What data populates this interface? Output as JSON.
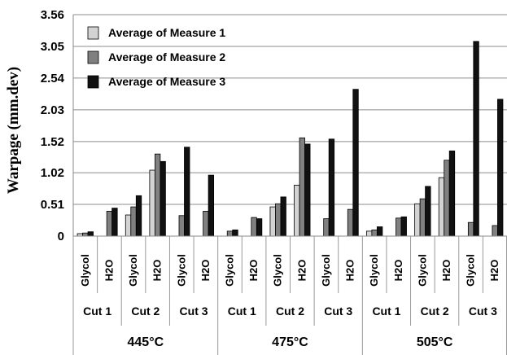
{
  "chart_data": {
    "type": "bar",
    "ylabel": "Warpage (mm.dev)",
    "yticks": [
      "3.56",
      "3.05",
      "2.54",
      "2.03",
      "1.52",
      "1.02",
      "0.51",
      "0"
    ],
    "ylim": [
      0,
      3.56
    ],
    "grid": true,
    "legend_position": "top-left",
    "groups": [
      {
        "temperature": "445°C",
        "cuts": [
          {
            "cut": "Cut 1",
            "fluids": [
              "Glycol",
              "H2O"
            ]
          },
          {
            "cut": "Cut 2",
            "fluids": [
              "Glycol",
              "H2O"
            ]
          },
          {
            "cut": "Cut 3",
            "fluids": [
              "Glycol",
              "H2O"
            ]
          }
        ]
      },
      {
        "temperature": "475°C",
        "cuts": [
          {
            "cut": "Cut 1",
            "fluids": [
              "Glycol",
              "H2O"
            ]
          },
          {
            "cut": "Cut 2",
            "fluids": [
              "Glycol",
              "H2O"
            ]
          },
          {
            "cut": "Cut 3",
            "fluids": [
              "Glycol",
              "H2O"
            ]
          }
        ]
      },
      {
        "temperature": "505°C",
        "cuts": [
          {
            "cut": "Cut 1",
            "fluids": [
              "Glycol",
              "H2O"
            ]
          },
          {
            "cut": "Cut 2",
            "fluids": [
              "Glycol",
              "H2O"
            ]
          },
          {
            "cut": "Cut 3",
            "fluids": [
              "Glycol",
              "H2O"
            ]
          }
        ]
      }
    ],
    "series": [
      {
        "name": "Average of Measure 1",
        "color": "#d3d3d3",
        "values": [
          0.04,
          0,
          0.34,
          1.06,
          0,
          0,
          0,
          0,
          0.47,
          0.82,
          0,
          0,
          0.08,
          0,
          0.52,
          0.94,
          0,
          0
        ]
      },
      {
        "name": "Average of Measure 2",
        "color": "#808080",
        "values": [
          0.05,
          0.4,
          0.47,
          1.32,
          0.33,
          0.4,
          0.08,
          0.3,
          0.52,
          1.58,
          0.28,
          0.43,
          0.1,
          0.29,
          0.6,
          1.22,
          0.22,
          0.17
        ]
      },
      {
        "name": "Average of Measure 3",
        "color": "#111111",
        "values": [
          0.07,
          0.45,
          0.65,
          1.2,
          1.43,
          0.98,
          0.1,
          0.28,
          0.63,
          1.48,
          1.56,
          2.36,
          0.15,
          0.31,
          0.8,
          1.37,
          3.13,
          2.2
        ]
      }
    ]
  }
}
